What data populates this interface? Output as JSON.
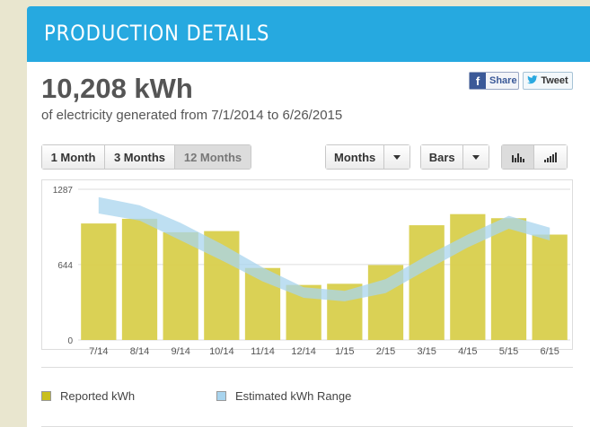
{
  "header": {
    "title": "PRODUCTION DETAILS"
  },
  "summary": {
    "total": "10,208 kWh",
    "subtitle": "of electricity generated from 7/1/2014 to 6/26/2015"
  },
  "social": {
    "share_label": "Share",
    "facebook_glyph": "f",
    "tweet_label": "Tweet"
  },
  "range_tabs": [
    {
      "label": "1 Month",
      "active": false
    },
    {
      "label": "3 Months",
      "active": false
    },
    {
      "label": "12 Months",
      "active": true
    }
  ],
  "granularity": {
    "selected": "Months"
  },
  "chart_style": {
    "selected": "Bars"
  },
  "view_toggle": {
    "active": "bars-icon"
  },
  "chart_data": {
    "type": "bar",
    "categories": [
      "7/14",
      "8/14",
      "9/14",
      "10/14",
      "11/14",
      "12/14",
      "1/15",
      "2/15",
      "3/15",
      "4/15",
      "5/15",
      "6/15"
    ],
    "series": [
      {
        "name": "Reported kWh",
        "type": "bar",
        "color": "#d8cf4c",
        "values": [
          995,
          1035,
          920,
          930,
          615,
          470,
          480,
          640,
          980,
          1075,
          1040,
          900
        ]
      },
      {
        "name": "Estimated kWh Range",
        "type": "band",
        "color": "#a8d4ee",
        "low": [
          1080,
          1020,
          850,
          680,
          500,
          360,
          330,
          400,
          600,
          790,
          950,
          850
        ],
        "high": [
          1220,
          1150,
          1000,
          820,
          620,
          450,
          420,
          520,
          720,
          900,
          1060,
          960
        ]
      }
    ],
    "yticks": [
      0,
      644,
      1287
    ],
    "ylim": [
      0,
      1287
    ]
  },
  "legend": [
    {
      "label": "Reported kWh",
      "color": "#d8cf4c"
    },
    {
      "label": "Estimated kWh Range",
      "color": "#a8d4ee"
    }
  ]
}
